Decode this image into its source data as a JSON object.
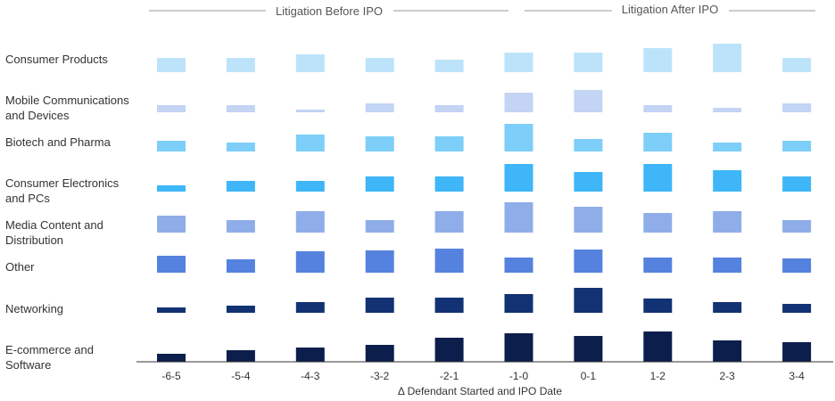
{
  "chart_data": {
    "type": "heatmap",
    "section_labels": [
      "Litigation Before IPO",
      "Litigation After IPO"
    ],
    "categories": [
      "Consumer Products",
      "Mobile Communications and Devices",
      "Biotech and Pharma",
      "Consumer Electronics and PCs",
      "Media Content and Distribution",
      "Other",
      "Networking",
      "E-commerce and Software"
    ],
    "x": [
      "-6-5",
      "-5-4",
      "-4-3",
      "-3-2",
      "-2-1",
      "-1-0",
      "0-1",
      "1-2",
      "2-3",
      "3-4"
    ],
    "xlabel": "Δ Defendant Started and IPO Date",
    "values": [
      [
        16,
        16,
        20,
        16,
        14,
        22,
        22,
        27,
        32,
        16
      ],
      [
        8,
        8,
        3,
        10,
        8,
        22,
        25,
        8,
        5,
        10
      ],
      [
        12,
        10,
        19,
        17,
        17,
        31,
        14,
        21,
        10,
        12
      ],
      [
        7,
        12,
        12,
        17,
        17,
        31,
        22,
        31,
        24,
        17
      ],
      [
        19,
        14,
        24,
        14,
        24,
        34,
        29,
        22,
        24,
        14
      ],
      [
        19,
        15,
        24,
        25,
        27,
        17,
        26,
        17,
        17,
        16
      ],
      [
        6,
        8,
        12,
        17,
        17,
        21,
        28,
        16,
        12,
        10
      ],
      [
        9,
        13,
        16,
        19,
        27,
        32,
        29,
        34,
        24,
        22
      ]
    ],
    "colors": [
      "#bde3fa",
      "#c3d4f4",
      "#7dcef8",
      "#3eb6f8",
      "#8fade9",
      "#5482de",
      "#123274",
      "#0c1e4b"
    ],
    "grid": false,
    "legend": "none"
  }
}
